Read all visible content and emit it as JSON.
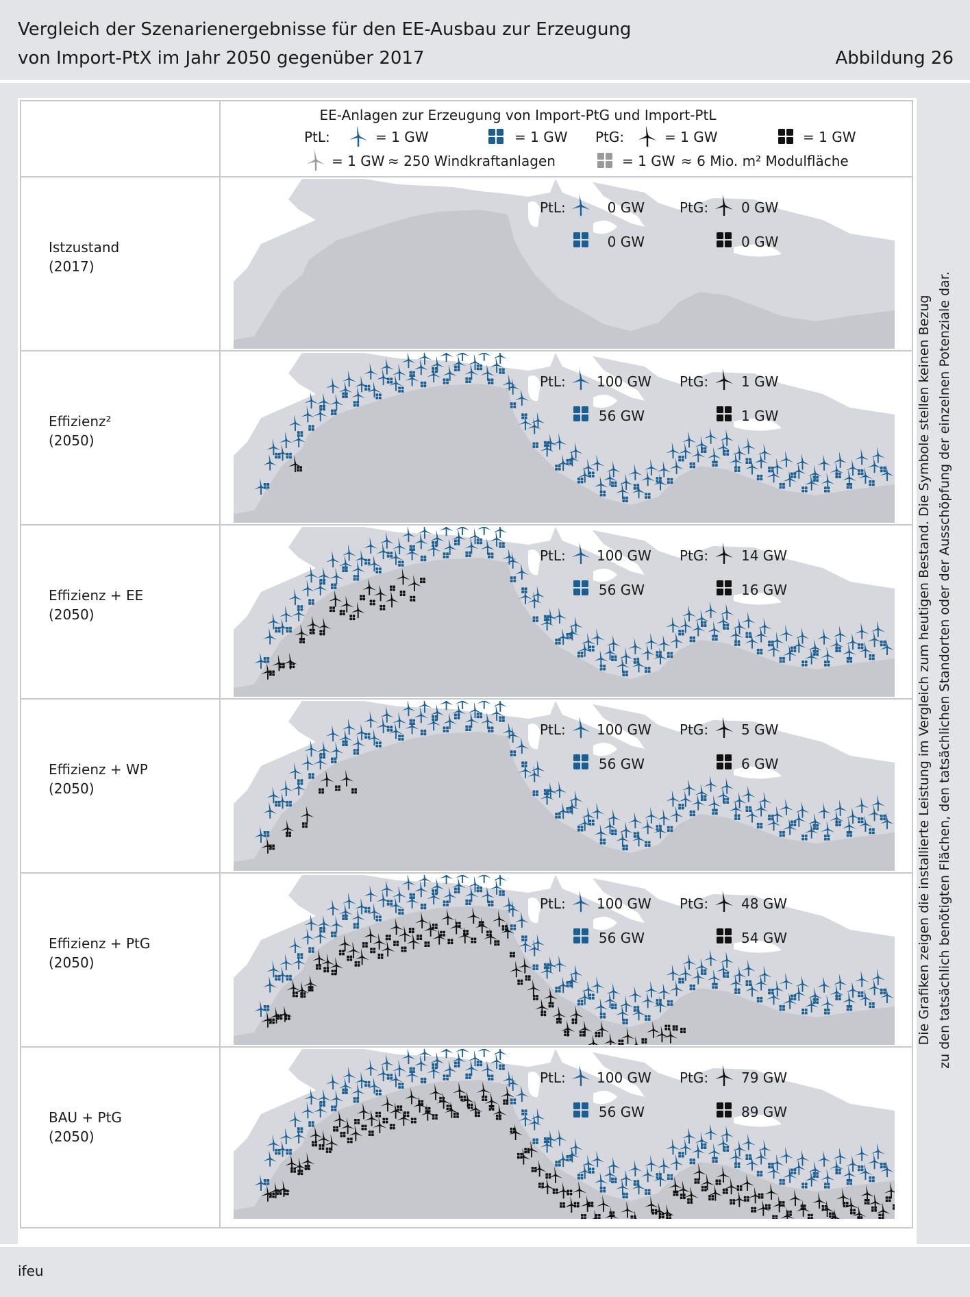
{
  "header": {
    "title_line1": "Vergleich der Szenarienergebnisse für den EE-Ausbau zur Erzeugung",
    "title_line2": "von Import-PtX im Jahr 2050 gegenüber 2017",
    "figure": "Abbildung 26"
  },
  "legend": {
    "title": "EE-Anlagen zur Erzeugung von Import-PtG und Import-PtL",
    "ptl": "PtL:",
    "ptg": "PtG:",
    "eq1gw": "= 1 GW",
    "wind_note": "≈ 250 Windkraftanlagen",
    "pv_note": "≈ 6 Mio. m² Modulfläche"
  },
  "side_note": {
    "line1": "Die Grafiken zeigen die installierte Leistung im Vergleich zum heutigen Bestand. Die Symbole stellen keinen Bezug",
    "line2": "zu den tatsächlich benötigten Flächen, den tatsächlichen Standorten oder der Ausschöpfung der einzelnen Potenziale dar."
  },
  "rows": [
    {
      "name": "Istzustand",
      "year": "(2017)",
      "ptl_wind": "0 GW",
      "ptl_pv": "0 GW",
      "ptg_wind": "0 GW",
      "ptg_pv": "0 GW",
      "n_ptl_wind": 0,
      "n_ptl_pv": 0,
      "n_ptg_wind": 0,
      "n_ptg_pv": 0
    },
    {
      "name": "Effizienz²",
      "year": "(2050)",
      "ptl_wind": "100 GW",
      "ptl_pv": "56 GW",
      "ptg_wind": "1 GW",
      "ptg_pv": "1 GW",
      "n_ptl_wind": 100,
      "n_ptl_pv": 56,
      "n_ptg_wind": 1,
      "n_ptg_pv": 1
    },
    {
      "name": "Effizienz + EE",
      "year": "(2050)",
      "ptl_wind": "100 GW",
      "ptl_pv": "56 GW",
      "ptg_wind": "14 GW",
      "ptg_pv": "16 GW",
      "n_ptl_wind": 100,
      "n_ptl_pv": 56,
      "n_ptg_wind": 14,
      "n_ptg_pv": 16
    },
    {
      "name": "Effizienz + WP",
      "year": "(2050)",
      "ptl_wind": "100 GW",
      "ptl_pv": "56 GW",
      "ptg_wind": "5 GW",
      "ptg_pv": "6 GW",
      "n_ptl_wind": 100,
      "n_ptl_pv": 56,
      "n_ptg_wind": 5,
      "n_ptg_pv": 6
    },
    {
      "name": "Effizienz + PtG",
      "year": "(2050)",
      "ptl_wind": "100 GW",
      "ptl_pv": "56 GW",
      "ptg_wind": "48 GW",
      "ptg_pv": "54 GW",
      "n_ptl_wind": 100,
      "n_ptl_pv": 56,
      "n_ptg_wind": 48,
      "n_ptg_pv": 54
    },
    {
      "name": "BAU + PtG",
      "year": "(2050)",
      "ptl_wind": "100 GW",
      "ptl_pv": "56 GW",
      "ptg_wind": "79 GW",
      "ptg_pv": "89 GW",
      "n_ptl_wind": 100,
      "n_ptl_pv": 56,
      "n_ptg_wind": 79,
      "n_ptg_pv": 89
    }
  ],
  "colors": {
    "ptl": "#1b5f92",
    "ptg": "#111111",
    "legend_gray": "#9a9a9a",
    "land": "#ffffff",
    "sea": "#d7d8dd"
  },
  "icons": {
    "wind": "wind-turbine-icon",
    "pv": "solar-panel-icon"
  },
  "footer": "ifeu"
}
